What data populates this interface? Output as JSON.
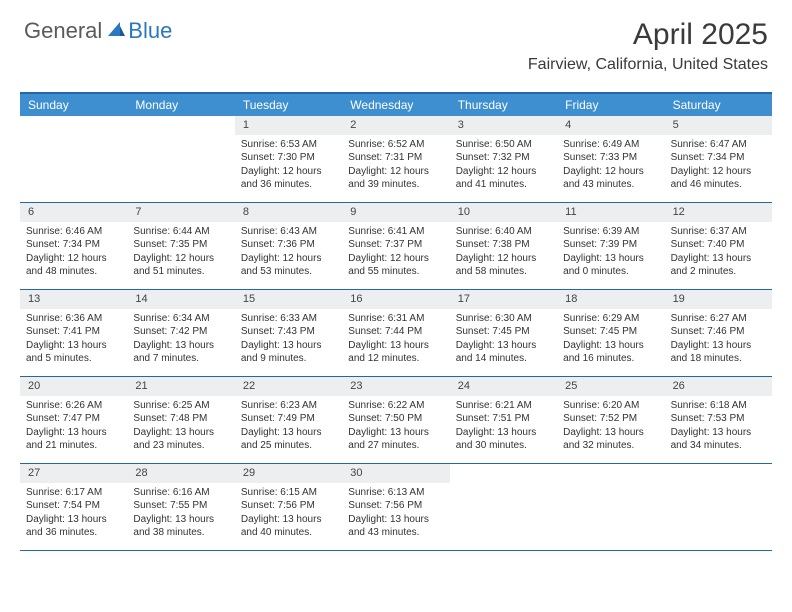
{
  "logo": {
    "general": "General",
    "blue": "Blue",
    "general_color": "#5a5a5a",
    "blue_color": "#2b77c0",
    "sail_color": "#2b77c0"
  },
  "header": {
    "month": "April 2025",
    "location": "Fairview, California, United States",
    "title_fontsize": 30,
    "location_fontsize": 16
  },
  "colors": {
    "header_bar": "#3d8fcf",
    "row_border": "#2267a8",
    "daynum_bg": "#eceef0",
    "text": "#333333",
    "bg": "#ffffff"
  },
  "weekdays": [
    "Sunday",
    "Monday",
    "Tuesday",
    "Wednesday",
    "Thursday",
    "Friday",
    "Saturday"
  ],
  "weeks": [
    [
      null,
      null,
      {
        "n": "1",
        "sr": "Sunrise: 6:53 AM",
        "ss": "Sunset: 7:30 PM",
        "dl1": "Daylight: 12 hours",
        "dl2": "and 36 minutes."
      },
      {
        "n": "2",
        "sr": "Sunrise: 6:52 AM",
        "ss": "Sunset: 7:31 PM",
        "dl1": "Daylight: 12 hours",
        "dl2": "and 39 minutes."
      },
      {
        "n": "3",
        "sr": "Sunrise: 6:50 AM",
        "ss": "Sunset: 7:32 PM",
        "dl1": "Daylight: 12 hours",
        "dl2": "and 41 minutes."
      },
      {
        "n": "4",
        "sr": "Sunrise: 6:49 AM",
        "ss": "Sunset: 7:33 PM",
        "dl1": "Daylight: 12 hours",
        "dl2": "and 43 minutes."
      },
      {
        "n": "5",
        "sr": "Sunrise: 6:47 AM",
        "ss": "Sunset: 7:34 PM",
        "dl1": "Daylight: 12 hours",
        "dl2": "and 46 minutes."
      }
    ],
    [
      {
        "n": "6",
        "sr": "Sunrise: 6:46 AM",
        "ss": "Sunset: 7:34 PM",
        "dl1": "Daylight: 12 hours",
        "dl2": "and 48 minutes."
      },
      {
        "n": "7",
        "sr": "Sunrise: 6:44 AM",
        "ss": "Sunset: 7:35 PM",
        "dl1": "Daylight: 12 hours",
        "dl2": "and 51 minutes."
      },
      {
        "n": "8",
        "sr": "Sunrise: 6:43 AM",
        "ss": "Sunset: 7:36 PM",
        "dl1": "Daylight: 12 hours",
        "dl2": "and 53 minutes."
      },
      {
        "n": "9",
        "sr": "Sunrise: 6:41 AM",
        "ss": "Sunset: 7:37 PM",
        "dl1": "Daylight: 12 hours",
        "dl2": "and 55 minutes."
      },
      {
        "n": "10",
        "sr": "Sunrise: 6:40 AM",
        "ss": "Sunset: 7:38 PM",
        "dl1": "Daylight: 12 hours",
        "dl2": "and 58 minutes."
      },
      {
        "n": "11",
        "sr": "Sunrise: 6:39 AM",
        "ss": "Sunset: 7:39 PM",
        "dl1": "Daylight: 13 hours",
        "dl2": "and 0 minutes."
      },
      {
        "n": "12",
        "sr": "Sunrise: 6:37 AM",
        "ss": "Sunset: 7:40 PM",
        "dl1": "Daylight: 13 hours",
        "dl2": "and 2 minutes."
      }
    ],
    [
      {
        "n": "13",
        "sr": "Sunrise: 6:36 AM",
        "ss": "Sunset: 7:41 PM",
        "dl1": "Daylight: 13 hours",
        "dl2": "and 5 minutes."
      },
      {
        "n": "14",
        "sr": "Sunrise: 6:34 AM",
        "ss": "Sunset: 7:42 PM",
        "dl1": "Daylight: 13 hours",
        "dl2": "and 7 minutes."
      },
      {
        "n": "15",
        "sr": "Sunrise: 6:33 AM",
        "ss": "Sunset: 7:43 PM",
        "dl1": "Daylight: 13 hours",
        "dl2": "and 9 minutes."
      },
      {
        "n": "16",
        "sr": "Sunrise: 6:31 AM",
        "ss": "Sunset: 7:44 PM",
        "dl1": "Daylight: 13 hours",
        "dl2": "and 12 minutes."
      },
      {
        "n": "17",
        "sr": "Sunrise: 6:30 AM",
        "ss": "Sunset: 7:45 PM",
        "dl1": "Daylight: 13 hours",
        "dl2": "and 14 minutes."
      },
      {
        "n": "18",
        "sr": "Sunrise: 6:29 AM",
        "ss": "Sunset: 7:45 PM",
        "dl1": "Daylight: 13 hours",
        "dl2": "and 16 minutes."
      },
      {
        "n": "19",
        "sr": "Sunrise: 6:27 AM",
        "ss": "Sunset: 7:46 PM",
        "dl1": "Daylight: 13 hours",
        "dl2": "and 18 minutes."
      }
    ],
    [
      {
        "n": "20",
        "sr": "Sunrise: 6:26 AM",
        "ss": "Sunset: 7:47 PM",
        "dl1": "Daylight: 13 hours",
        "dl2": "and 21 minutes."
      },
      {
        "n": "21",
        "sr": "Sunrise: 6:25 AM",
        "ss": "Sunset: 7:48 PM",
        "dl1": "Daylight: 13 hours",
        "dl2": "and 23 minutes."
      },
      {
        "n": "22",
        "sr": "Sunrise: 6:23 AM",
        "ss": "Sunset: 7:49 PM",
        "dl1": "Daylight: 13 hours",
        "dl2": "and 25 minutes."
      },
      {
        "n": "23",
        "sr": "Sunrise: 6:22 AM",
        "ss": "Sunset: 7:50 PM",
        "dl1": "Daylight: 13 hours",
        "dl2": "and 27 minutes."
      },
      {
        "n": "24",
        "sr": "Sunrise: 6:21 AM",
        "ss": "Sunset: 7:51 PM",
        "dl1": "Daylight: 13 hours",
        "dl2": "and 30 minutes."
      },
      {
        "n": "25",
        "sr": "Sunrise: 6:20 AM",
        "ss": "Sunset: 7:52 PM",
        "dl1": "Daylight: 13 hours",
        "dl2": "and 32 minutes."
      },
      {
        "n": "26",
        "sr": "Sunrise: 6:18 AM",
        "ss": "Sunset: 7:53 PM",
        "dl1": "Daylight: 13 hours",
        "dl2": "and 34 minutes."
      }
    ],
    [
      {
        "n": "27",
        "sr": "Sunrise: 6:17 AM",
        "ss": "Sunset: 7:54 PM",
        "dl1": "Daylight: 13 hours",
        "dl2": "and 36 minutes."
      },
      {
        "n": "28",
        "sr": "Sunrise: 6:16 AM",
        "ss": "Sunset: 7:55 PM",
        "dl1": "Daylight: 13 hours",
        "dl2": "and 38 minutes."
      },
      {
        "n": "29",
        "sr": "Sunrise: 6:15 AM",
        "ss": "Sunset: 7:56 PM",
        "dl1": "Daylight: 13 hours",
        "dl2": "and 40 minutes."
      },
      {
        "n": "30",
        "sr": "Sunrise: 6:13 AM",
        "ss": "Sunset: 7:56 PM",
        "dl1": "Daylight: 13 hours",
        "dl2": "and 43 minutes."
      },
      null,
      null,
      null
    ]
  ]
}
